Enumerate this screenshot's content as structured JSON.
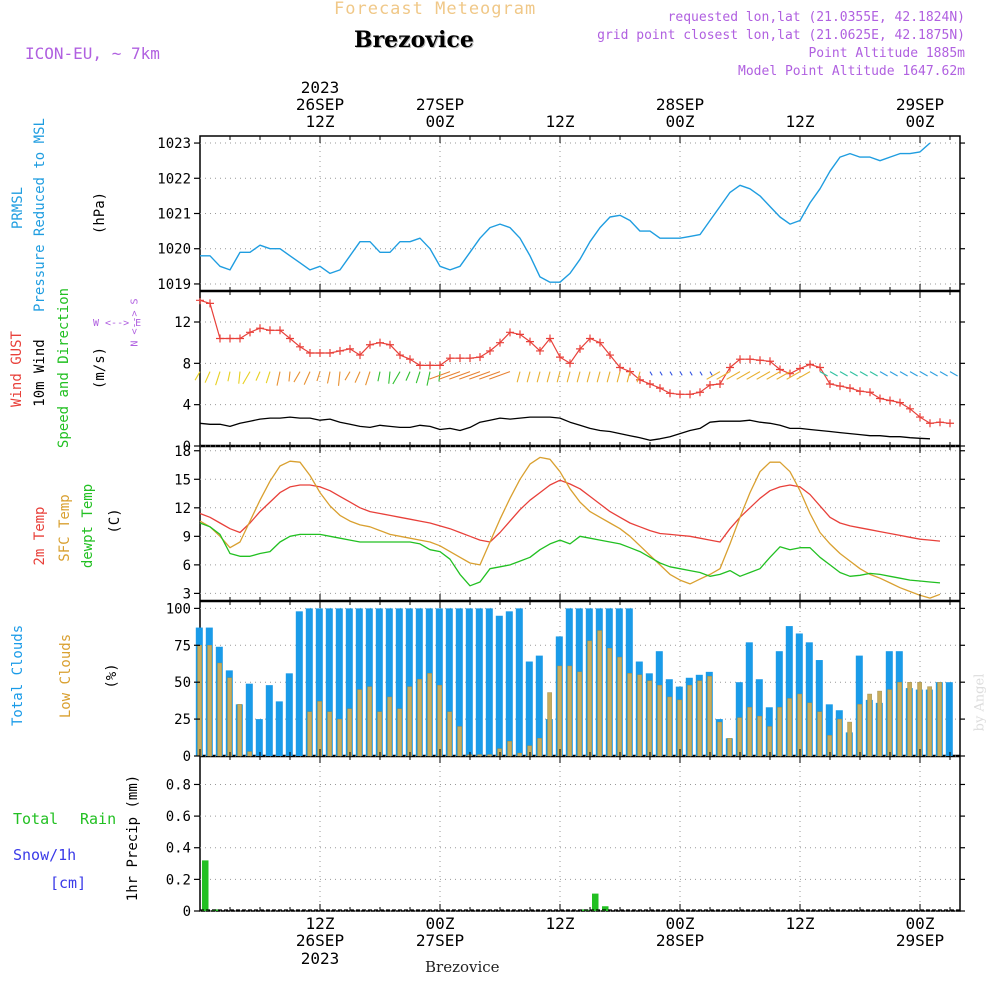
{
  "header": {
    "product": "Forecast Meteogram",
    "location": "Brezovice",
    "model": "ICON-EU, ~ 7km",
    "requested": "requested lon,lat (21.0355E, 42.1824N)",
    "gridpoint": "grid point closest lon,lat (21.0625E, 42.1875N)",
    "point_alt": "Point Altitude 1885m",
    "model_alt": "Model Point Altitude 1647.62m",
    "footer_location": "Brezovice",
    "watermark": "by Angel"
  },
  "time_axis": {
    "top_ticks": [
      {
        "hour": 12,
        "line1": "2023",
        "line2": "26SEP",
        "line3": "12Z"
      },
      {
        "hour": 24,
        "line1": "",
        "line2": "27SEP",
        "line3": "00Z"
      },
      {
        "hour": 36,
        "line1": "",
        "line2": "",
        "line3": "12Z"
      },
      {
        "hour": 48,
        "line1": "",
        "line2": "28SEP",
        "line3": "00Z"
      },
      {
        "hour": 60,
        "line1": "",
        "line2": "",
        "line3": "12Z"
      },
      {
        "hour": 72,
        "line1": "",
        "line2": "29SEP",
        "line3": "00Z"
      }
    ],
    "bottom_ticks": [
      {
        "hour": 12,
        "line1": "12Z",
        "line2": "26SEP",
        "line3": "2023"
      },
      {
        "hour": 24,
        "line1": "00Z",
        "line2": "27SEP",
        "line3": ""
      },
      {
        "hour": 36,
        "line1": "12Z",
        "line2": "",
        "line3": ""
      },
      {
        "hour": 48,
        "line1": "00Z",
        "line2": "28SEP",
        "line3": ""
      },
      {
        "hour": 60,
        "line1": "12Z",
        "line2": "",
        "line3": ""
      },
      {
        "hour": 72,
        "line1": "00Z",
        "line2": "29SEP",
        "line3": ""
      }
    ]
  },
  "labels": {
    "pressure": {
      "l1": "PRMSL",
      "l2": "Pressure Reduced to MSL",
      "unit": "(hPa)"
    },
    "wind": {
      "l1": "Wind GUST",
      "l2": "10m Wind",
      "l3": "Speed and Direction",
      "unit": "(m/s)",
      "compass_ns": "N <--> S",
      "compass_we": "W <--> E"
    },
    "temp": {
      "l1": "2m Temp",
      "l2": "SFC Temp",
      "l3": "dewpt Temp",
      "unit": "(C)"
    },
    "clouds": {
      "l1": "Total Clouds",
      "l2": "Low Clouds",
      "unit": "(%)"
    },
    "precip": {
      "l1": "Total",
      "l1b": "Rain",
      "l2": "Snow/1h",
      "l3": "[cm]",
      "unit": "1hr Precip (mm)"
    }
  },
  "colors": {
    "pressure": "#1f9de0",
    "gust": "#e8403a",
    "wind": "#000000",
    "temp2m": "#e8403a",
    "sfc": "#d9a030",
    "dewpt": "#22c022",
    "total_cloud": "#1a9be8",
    "low_cloud": "#c8ac5a",
    "rain": "#22c022",
    "snow": "#3a3ae8",
    "header_purple": "#b060e0",
    "header_orange": "#f0c888"
  },
  "chart_data": [
    {
      "type": "line",
      "title": "PRMSL Pressure Reduced to MSL",
      "ylabel": "(hPa)",
      "ylim": [
        1018.8,
        1023.2
      ],
      "yticks": [
        1019,
        1020,
        1021,
        1022,
        1023
      ],
      "x_start": 0,
      "x_step": 1,
      "series": [
        {
          "name": "PRMSL",
          "values": [
            1019.8,
            1019.8,
            1019.5,
            1019.4,
            1019.9,
            1019.9,
            1020.1,
            1020.0,
            1020.0,
            1019.8,
            1019.6,
            1019.4,
            1019.5,
            1019.3,
            1019.4,
            1019.8,
            1020.2,
            1020.2,
            1019.9,
            1019.9,
            1020.2,
            1020.2,
            1020.3,
            1020.0,
            1019.5,
            1019.4,
            1019.5,
            1019.9,
            1020.3,
            1020.6,
            1020.7,
            1020.6,
            1020.3,
            1019.8,
            1019.2,
            1019.05,
            1019.05,
            1019.3,
            1019.7,
            1020.2,
            1020.6,
            1020.9,
            1020.95,
            1020.8,
            1020.5,
            1020.5,
            1020.3,
            1020.3,
            1020.3,
            1020.35,
            1020.4,
            1020.8,
            1021.2,
            1021.6,
            1021.8,
            1021.7,
            1021.5,
            1021.2,
            1020.9,
            1020.7,
            1020.8,
            1021.3,
            1021.7,
            1022.2,
            1022.6,
            1022.7,
            1022.6,
            1022.6,
            1022.5,
            1022.6,
            1022.7,
            1022.7,
            1022.75,
            1023.0
          ]
        }
      ]
    },
    {
      "type": "line",
      "title": "Wind GUST / 10m Wind Speed and Direction",
      "ylabel": "(m/s)",
      "ylim": [
        0,
        15
      ],
      "yticks": [
        0,
        4,
        8,
        12
      ],
      "x_start": 0,
      "x_step": 1,
      "series": [
        {
          "name": "Wind GUST",
          "values": [
            14.1,
            13.8,
            10.4,
            10.4,
            10.4,
            11.0,
            11.4,
            11.2,
            11.2,
            10.4,
            9.6,
            9.0,
            9.0,
            9.0,
            9.2,
            9.4,
            8.8,
            9.8,
            10.0,
            9.8,
            8.8,
            8.4,
            7.8,
            7.8,
            7.8,
            8.5,
            8.5,
            8.5,
            8.6,
            9.2,
            10.0,
            11.0,
            10.8,
            10.1,
            9.2,
            10.4,
            8.6,
            8.0,
            9.4,
            10.4,
            10.0,
            8.8,
            7.6,
            7.2,
            6.4,
            6.0,
            5.6,
            5.1,
            5.0,
            5.0,
            5.2,
            5.9,
            6.0,
            7.6,
            8.4,
            8.4,
            8.3,
            8.2,
            7.4,
            7.0,
            7.5,
            7.9,
            7.6,
            6.0,
            5.8,
            5.6,
            5.3,
            5.2,
            4.6,
            4.4,
            4.2,
            3.6,
            2.8,
            2.2,
            2.3,
            2.2
          ]
        },
        {
          "name": "10m Wind",
          "values": [
            2.2,
            2.1,
            2.1,
            1.9,
            2.2,
            2.4,
            2.6,
            2.7,
            2.7,
            2.8,
            2.7,
            2.7,
            2.5,
            2.6,
            2.3,
            2.1,
            1.9,
            1.8,
            2.0,
            1.9,
            1.8,
            1.8,
            2.0,
            1.9,
            1.6,
            1.7,
            1.5,
            1.8,
            2.3,
            2.5,
            2.7,
            2.6,
            2.7,
            2.8,
            2.8,
            2.8,
            2.7,
            2.3,
            2.0,
            1.7,
            1.5,
            1.4,
            1.2,
            1.0,
            0.8,
            0.55,
            0.7,
            0.9,
            1.2,
            1.5,
            1.7,
            2.3,
            2.4,
            2.4,
            2.4,
            2.5,
            2.3,
            2.2,
            2.0,
            1.7,
            1.7,
            1.6,
            1.5,
            1.4,
            1.3,
            1.2,
            1.1,
            1.0,
            1.0,
            0.9,
            0.9,
            0.8,
            0.75,
            0.7
          ]
        }
      ]
    },
    {
      "type": "line",
      "title": "2m Temp / SFC Temp / dewpt Temp",
      "ylabel": "(C)",
      "ylim": [
        2.2,
        18.5
      ],
      "yticks": [
        3,
        6,
        9,
        12,
        15,
        18
      ],
      "x_start": 0,
      "x_step": 1,
      "series": [
        {
          "name": "2m Temp",
          "values": [
            11.4,
            11.0,
            10.4,
            9.8,
            9.4,
            10.4,
            11.6,
            12.6,
            13.6,
            14.2,
            14.4,
            14.4,
            14.2,
            13.8,
            13.2,
            12.6,
            12.0,
            11.6,
            11.4,
            11.2,
            11.0,
            10.8,
            10.6,
            10.4,
            10.1,
            9.8,
            9.4,
            9.0,
            8.6,
            8.4,
            9.4,
            10.6,
            11.8,
            12.8,
            13.6,
            14.4,
            14.9,
            14.5,
            14.0,
            13.2,
            12.4,
            11.6,
            11.0,
            10.4,
            10.0,
            9.6,
            9.3,
            9.2,
            9.1,
            9.0,
            8.8,
            8.6,
            8.4,
            9.8,
            11.0,
            12.0,
            13.0,
            13.8,
            14.2,
            14.4,
            14.2,
            13.4,
            12.2,
            11.0,
            10.4,
            10.1,
            9.9,
            9.7,
            9.5,
            9.3,
            9.1,
            8.9,
            8.7,
            8.6,
            8.5
          ]
        },
        {
          "name": "SFC Temp",
          "values": [
            10.6,
            10.0,
            9.0,
            7.8,
            8.4,
            10.6,
            12.8,
            14.8,
            16.4,
            16.9,
            16.8,
            15.4,
            13.6,
            12.2,
            11.2,
            10.6,
            10.2,
            10.0,
            9.6,
            9.2,
            9.0,
            8.8,
            8.6,
            8.4,
            8.0,
            7.4,
            6.8,
            6.2,
            6.0,
            8.4,
            10.8,
            13.0,
            15.0,
            16.6,
            17.3,
            17.1,
            15.8,
            14.0,
            12.6,
            11.6,
            11.0,
            10.4,
            9.8,
            9.0,
            8.0,
            7.0,
            6.0,
            5.0,
            4.4,
            4.0,
            4.5,
            5.0,
            5.6,
            8.2,
            11.0,
            13.6,
            15.8,
            16.8,
            16.8,
            15.8,
            13.8,
            11.4,
            9.4,
            8.2,
            7.2,
            6.4,
            5.6,
            5.0,
            4.6,
            4.1,
            3.6,
            3.2,
            2.8,
            2.5,
            2.9
          ]
        },
        {
          "name": "dewpt Temp",
          "values": [
            10.4,
            10.0,
            9.2,
            7.2,
            6.9,
            6.9,
            7.2,
            7.4,
            8.4,
            9.0,
            9.2,
            9.2,
            9.2,
            9.0,
            8.8,
            8.6,
            8.4,
            8.4,
            8.4,
            8.4,
            8.4,
            8.4,
            8.2,
            7.6,
            7.4,
            6.6,
            5.0,
            3.8,
            4.2,
            5.6,
            5.8,
            6.0,
            6.4,
            6.8,
            7.6,
            8.2,
            8.6,
            8.2,
            9.0,
            8.8,
            8.6,
            8.4,
            8.2,
            7.8,
            7.4,
            6.8,
            6.2,
            5.8,
            5.6,
            5.4,
            5.2,
            4.8,
            5.0,
            5.4,
            4.8,
            5.2,
            5.6,
            6.8,
            7.9,
            7.6,
            7.8,
            7.8,
            6.8,
            6.0,
            5.2,
            4.8,
            4.9,
            5.1,
            5.0,
            4.8,
            4.6,
            4.4,
            4.3,
            4.2,
            4.1
          ]
        }
      ]
    },
    {
      "type": "bar",
      "title": "Total Clouds / Low Clouds",
      "ylabel": "(%)",
      "ylim": [
        0,
        105
      ],
      "yticks": [
        0,
        25,
        50,
        75,
        100
      ],
      "x_start": 0,
      "x_step": 1,
      "series": [
        {
          "name": "Total Clouds",
          "values": [
            87,
            87,
            74,
            58,
            35,
            49,
            25,
            48,
            37,
            56,
            98,
            100,
            100,
            100,
            100,
            100,
            100,
            100,
            100,
            100,
            100,
            100,
            100,
            100,
            100,
            100,
            100,
            100,
            100,
            100,
            95,
            98,
            100,
            64,
            68,
            25,
            81,
            100,
            100,
            100,
            100,
            100,
            100,
            100,
            64,
            56,
            71,
            52,
            47,
            53,
            55,
            57,
            25,
            12,
            50,
            77,
            52,
            33,
            71,
            88,
            83,
            77,
            65,
            35,
            31,
            16,
            68,
            38,
            36,
            71,
            71,
            46,
            45,
            45,
            50,
            50,
            50,
            50
          ]
        },
        {
          "name": "Low Clouds",
          "values": [
            75,
            75,
            63,
            53,
            35,
            3,
            0,
            0,
            0,
            0,
            0,
            30,
            37,
            30,
            25,
            32,
            45,
            47,
            30,
            40,
            32,
            47,
            52,
            56,
            48,
            30,
            20,
            1,
            1,
            1,
            5,
            10,
            2,
            7,
            12,
            43,
            61,
            61,
            57,
            78,
            85,
            73,
            67,
            56,
            55,
            51,
            48,
            40,
            38,
            48,
            51,
            54,
            23,
            12,
            26,
            33,
            27,
            20,
            33,
            39,
            42,
            36,
            30,
            14,
            25,
            23,
            35,
            42,
            44,
            45,
            50,
            50,
            50,
            47,
            50
          ]
        }
      ]
    },
    {
      "type": "bar",
      "title": "Total Rain / Snow/1h",
      "ylabel": "1hr Precip (mm)",
      "ylim": [
        0,
        0.98
      ],
      "yticks": [
        0,
        0.2,
        0.4,
        0.6,
        0.8
      ],
      "x_start": 0,
      "x_step": 1,
      "series": [
        {
          "name": "Total Rain",
          "values": [
            0.32,
            0.01,
            0,
            0,
            0,
            0,
            0,
            0,
            0,
            0,
            0,
            0,
            0,
            0,
            0,
            0,
            0,
            0,
            0,
            0,
            0,
            0,
            0,
            0,
            0,
            0,
            0,
            0,
            0,
            0,
            0,
            0,
            0,
            0,
            0,
            0,
            0,
            0,
            0.01,
            0.11,
            0.03,
            0,
            0,
            0,
            0,
            0,
            0,
            0,
            0,
            0,
            0,
            0,
            0,
            0,
            0,
            0,
            0,
            0,
            0,
            0,
            0,
            0,
            0,
            0,
            0,
            0,
            0,
            0,
            0,
            0,
            0,
            0,
            0,
            0,
            0
          ]
        },
        {
          "name": "Snow/1h",
          "values": [
            0,
            0,
            0,
            0,
            0,
            0,
            0,
            0,
            0,
            0,
            0,
            0,
            0,
            0,
            0,
            0,
            0,
            0,
            0,
            0,
            0,
            0,
            0,
            0,
            0,
            0,
            0,
            0,
            0,
            0,
            0,
            0,
            0,
            0,
            0,
            0,
            0,
            0,
            0,
            0,
            0,
            0,
            0,
            0,
            0,
            0,
            0,
            0,
            0,
            0,
            0,
            0,
            0,
            0,
            0,
            0,
            0,
            0,
            0,
            0,
            0,
            0,
            0,
            0,
            0,
            0,
            0,
            0,
            0,
            0,
            0,
            0,
            0,
            0,
            0
          ]
        }
      ]
    }
  ]
}
